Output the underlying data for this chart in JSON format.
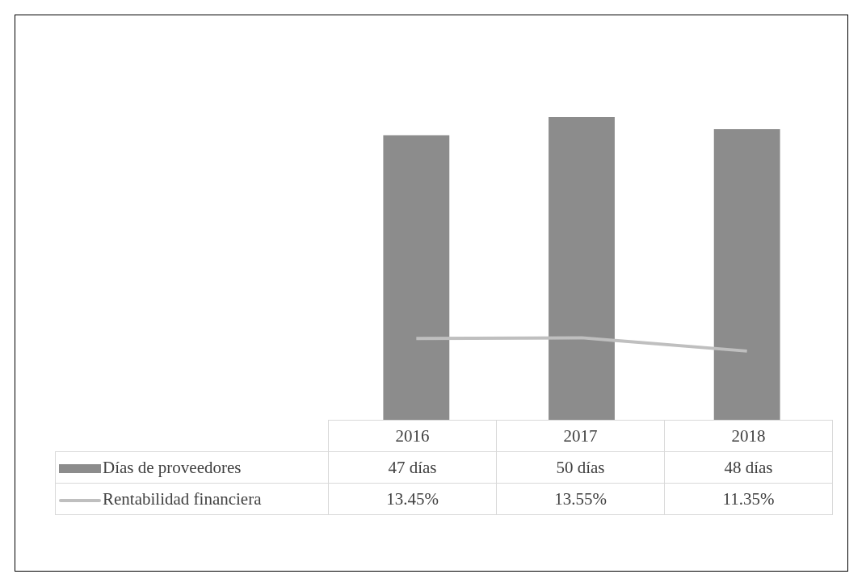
{
  "chart_data": {
    "type": "bar",
    "categories": [
      "2016",
      "2017",
      "2018"
    ],
    "series": [
      {
        "name": "Días de proveedores",
        "color": "#8c8c8c",
        "values": [
          47,
          50,
          48
        ],
        "value_labels": [
          "47 días",
          "50 días",
          "48 días"
        ]
      },
      {
        "name": "Rentabilidad financiera",
        "type": "line",
        "color": "#bfbfbf",
        "values": [
          13.45,
          13.55,
          11.35
        ],
        "value_labels": [
          "13.45%",
          "13.55%",
          "11.35%"
        ]
      }
    ],
    "grid": false,
    "legend": "bottom",
    "marker": "none"
  }
}
